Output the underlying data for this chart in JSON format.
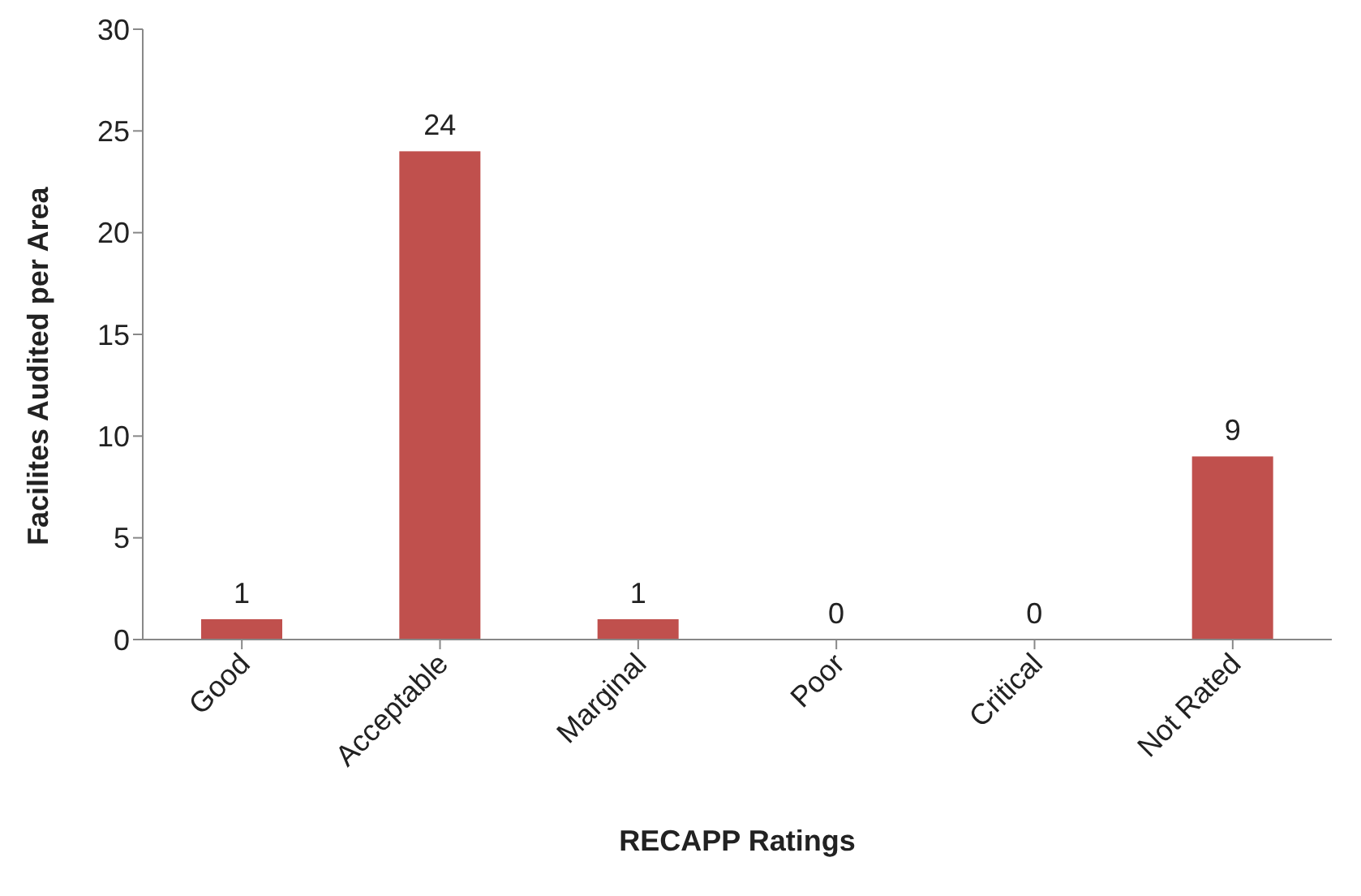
{
  "chart_data": {
    "type": "bar",
    "xlabel": "RECAPP Ratings",
    "ylabel": "Facilites Audited per Area",
    "categories": [
      "Good",
      "Acceptable",
      "Marginal",
      "Poor",
      "Critical",
      "Not Rated"
    ],
    "values": [
      1,
      24,
      1,
      0,
      0,
      9
    ],
    "color": "#c0504d",
    "ylim": [
      0,
      30
    ],
    "yticks": [
      0,
      5,
      10,
      15,
      20,
      25,
      30
    ],
    "grid": false,
    "data_labels": true
  }
}
